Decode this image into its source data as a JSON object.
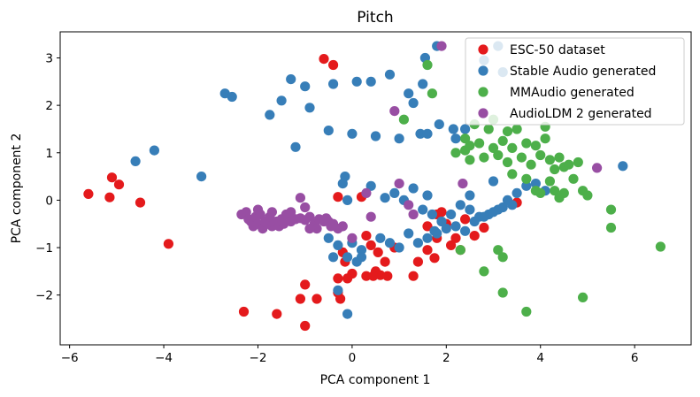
{
  "chart_data": {
    "type": "scatter",
    "title": "Pitch",
    "xlabel": "PCA component 1",
    "ylabel": "PCA component 2",
    "xlim": [
      -6.2,
      7.2
    ],
    "ylim": [
      -3.05,
      3.55
    ],
    "xticks": [
      -6,
      -4,
      -2,
      0,
      2,
      4,
      6
    ],
    "xtick_labels": [
      "−6",
      "−4",
      "−2",
      "0",
      "2",
      "4",
      "6"
    ],
    "yticks": [
      -2,
      -1,
      0,
      1,
      2,
      3
    ],
    "ytick_labels": [
      "−2",
      "−1",
      "0",
      "1",
      "2",
      "3"
    ],
    "grid": false,
    "legend_position": "top-right",
    "series": [
      {
        "name": "ESC-50 dataset",
        "color": "#e41a1c",
        "points": [
          [
            -5.6,
            0.13
          ],
          [
            -5.1,
            0.48
          ],
          [
            -4.95,
            0.33
          ],
          [
            -5.15,
            0.06
          ],
          [
            -4.5,
            -0.05
          ],
          [
            -3.9,
            -0.92
          ],
          [
            -2.3,
            -2.35
          ],
          [
            -1.6,
            -2.4
          ],
          [
            -1.0,
            -2.65
          ],
          [
            -1.1,
            -2.08
          ],
          [
            -0.75,
            -2.08
          ],
          [
            -1.0,
            -1.78
          ],
          [
            -0.3,
            -1.95
          ],
          [
            -0.25,
            -2.08
          ],
          [
            -0.3,
            -1.65
          ],
          [
            -0.6,
            2.98
          ],
          [
            -0.4,
            2.85
          ],
          [
            -0.3,
            0.07
          ],
          [
            0.2,
            0.07
          ],
          [
            0.3,
            -0.75
          ],
          [
            0.4,
            -0.95
          ],
          [
            0.55,
            -1.1
          ],
          [
            0.7,
            -1.3
          ],
          [
            0.5,
            -1.5
          ],
          [
            0.6,
            -1.58
          ],
          [
            0.3,
            -1.6
          ],
          [
            0.45,
            -1.6
          ],
          [
            0.75,
            -1.6
          ],
          [
            1.3,
            -1.6
          ],
          [
            1.4,
            -1.3
          ],
          [
            -0.2,
            -1.1
          ],
          [
            -0.15,
            -1.3
          ],
          [
            0.0,
            -1.55
          ],
          [
            -0.1,
            -1.65
          ],
          [
            1.6,
            -1.05
          ],
          [
            1.75,
            -1.22
          ],
          [
            1.8,
            -0.8
          ],
          [
            2.0,
            -0.5
          ],
          [
            2.2,
            -0.8
          ],
          [
            2.3,
            -1.05
          ],
          [
            2.4,
            -0.4
          ],
          [
            2.6,
            -0.75
          ],
          [
            2.8,
            -0.58
          ],
          [
            1.8,
            -0.3
          ],
          [
            1.9,
            -0.25
          ],
          [
            3.5,
            -0.05
          ],
          [
            1.6,
            -0.55
          ],
          [
            0.9,
            -1.0
          ],
          [
            2.1,
            -0.95
          ]
        ]
      },
      {
        "name": "Stable Audio generated",
        "color": "#377eb8",
        "points": [
          [
            -4.6,
            0.82
          ],
          [
            -4.2,
            1.05
          ],
          [
            -3.2,
            0.5
          ],
          [
            -2.7,
            2.25
          ],
          [
            -2.55,
            2.18
          ],
          [
            -1.75,
            1.8
          ],
          [
            -1.5,
            2.1
          ],
          [
            -1.3,
            2.55
          ],
          [
            -1.2,
            1.12
          ],
          [
            -1.0,
            2.4
          ],
          [
            -0.9,
            1.95
          ],
          [
            -0.5,
            1.47
          ],
          [
            -0.4,
            2.45
          ],
          [
            -0.15,
            0.5
          ],
          [
            -0.1,
            0.0
          ],
          [
            0.0,
            1.4
          ],
          [
            0.1,
            2.5
          ],
          [
            0.4,
            2.5
          ],
          [
            0.5,
            1.35
          ],
          [
            0.8,
            2.65
          ],
          [
            1.0,
            1.3
          ],
          [
            1.2,
            2.25
          ],
          [
            1.3,
            2.05
          ],
          [
            1.45,
            1.4
          ],
          [
            1.5,
            2.45
          ],
          [
            1.55,
            3.0
          ],
          [
            1.8,
            3.25
          ],
          [
            1.85,
            1.6
          ],
          [
            1.6,
            1.4
          ],
          [
            2.2,
            1.3
          ],
          [
            2.15,
            1.5
          ],
          [
            2.4,
            1.5
          ],
          [
            2.5,
            0.1
          ],
          [
            2.8,
            2.95
          ],
          [
            3.1,
            3.25
          ],
          [
            3.2,
            2.7
          ],
          [
            5.75,
            0.72
          ],
          [
            0.4,
            0.3
          ],
          [
            0.7,
            0.05
          ],
          [
            0.9,
            0.15
          ],
          [
            1.1,
            0.0
          ],
          [
            1.3,
            0.25
          ],
          [
            1.5,
            -0.2
          ],
          [
            1.7,
            -0.3
          ],
          [
            1.9,
            -0.45
          ],
          [
            2.1,
            -0.3
          ],
          [
            2.3,
            -0.1
          ],
          [
            2.5,
            -0.2
          ],
          [
            2.7,
            -0.35
          ],
          [
            2.9,
            -0.3
          ],
          [
            3.1,
            -0.2
          ],
          [
            3.3,
            0.0
          ],
          [
            3.5,
            0.15
          ],
          [
            3.7,
            0.3
          ],
          [
            3.9,
            0.35
          ],
          [
            4.1,
            0.2
          ],
          [
            0.6,
            -0.8
          ],
          [
            0.8,
            -0.9
          ],
          [
            1.0,
            -1.0
          ],
          [
            1.2,
            -0.7
          ],
          [
            1.4,
            -0.9
          ],
          [
            1.6,
            -0.8
          ],
          [
            1.8,
            -0.7
          ],
          [
            2.0,
            -0.6
          ],
          [
            2.2,
            -0.55
          ],
          [
            2.4,
            -0.65
          ],
          [
            2.6,
            -0.45
          ],
          [
            2.8,
            -0.35
          ],
          [
            3.0,
            -0.25
          ],
          [
            3.2,
            -0.15
          ],
          [
            0.0,
            -0.9
          ],
          [
            0.2,
            -1.05
          ],
          [
            -0.1,
            -1.2
          ],
          [
            0.1,
            -1.3
          ],
          [
            -0.3,
            -0.95
          ],
          [
            -0.5,
            -0.8
          ],
          [
            -0.4,
            -1.2
          ],
          [
            -0.3,
            -1.9
          ],
          [
            -0.1,
            -2.4
          ],
          [
            0.2,
            -1.2
          ],
          [
            -0.2,
            0.35
          ],
          [
            1.6,
            0.1
          ],
          [
            1.75,
            -0.65
          ],
          [
            3.0,
            0.4
          ],
          [
            3.4,
            -0.1
          ]
        ]
      },
      {
        "name": "MMAudio generated",
        "color": "#4daf4a",
        "points": [
          [
            1.6,
            2.85
          ],
          [
            1.7,
            2.25
          ],
          [
            1.1,
            1.7
          ],
          [
            2.4,
            1.3
          ],
          [
            2.4,
            1.05
          ],
          [
            2.2,
            1.0
          ],
          [
            2.5,
            0.85
          ],
          [
            2.7,
            1.2
          ],
          [
            2.8,
            0.9
          ],
          [
            2.9,
            1.5
          ],
          [
            3.0,
            1.1
          ],
          [
            3.1,
            0.95
          ],
          [
            3.2,
            1.25
          ],
          [
            3.3,
            0.8
          ],
          [
            3.4,
            1.1
          ],
          [
            3.5,
            1.5
          ],
          [
            3.6,
            0.9
          ],
          [
            3.7,
            1.2
          ],
          [
            3.8,
            0.75
          ],
          [
            3.9,
            1.15
          ],
          [
            4.0,
            0.95
          ],
          [
            4.1,
            1.3
          ],
          [
            4.2,
            0.85
          ],
          [
            4.3,
            0.65
          ],
          [
            4.4,
            0.9
          ],
          [
            4.5,
            0.7
          ],
          [
            4.6,
            0.75
          ],
          [
            4.7,
            0.45
          ],
          [
            4.8,
            0.8
          ],
          [
            4.2,
            0.4
          ],
          [
            4.3,
            0.2
          ],
          [
            4.5,
            0.15
          ],
          [
            4.9,
            0.2
          ],
          [
            5.0,
            0.1
          ],
          [
            5.5,
            -0.2
          ],
          [
            5.5,
            -0.58
          ],
          [
            6.55,
            -0.98
          ],
          [
            3.1,
            -1.05
          ],
          [
            3.2,
            -1.2
          ],
          [
            2.3,
            -1.05
          ],
          [
            2.8,
            -1.5
          ],
          [
            3.2,
            -1.95
          ],
          [
            3.7,
            -2.35
          ],
          [
            4.9,
            -2.05
          ],
          [
            3.9,
            0.2
          ],
          [
            3.7,
            0.45
          ],
          [
            4.1,
            1.55
          ],
          [
            3.0,
            1.7
          ],
          [
            2.6,
            1.6
          ],
          [
            3.3,
            1.45
          ],
          [
            4.4,
            0.05
          ],
          [
            4.0,
            0.15
          ],
          [
            2.5,
            1.15
          ],
          [
            3.4,
            0.55
          ]
        ]
      },
      {
        "name": "AudioLDM 2 generated",
        "color": "#984ea3",
        "points": [
          [
            -2.35,
            -0.3
          ],
          [
            -2.25,
            -0.25
          ],
          [
            -2.2,
            -0.4
          ],
          [
            -2.15,
            -0.45
          ],
          [
            -2.1,
            -0.55
          ],
          [
            -2.05,
            -0.35
          ],
          [
            -2.0,
            -0.5
          ],
          [
            -1.95,
            -0.3
          ],
          [
            -1.9,
            -0.6
          ],
          [
            -1.85,
            -0.45
          ],
          [
            -1.8,
            -0.5
          ],
          [
            -1.75,
            -0.35
          ],
          [
            -1.7,
            -0.55
          ],
          [
            -1.65,
            -0.5
          ],
          [
            -1.6,
            -0.45
          ],
          [
            -1.55,
            -0.55
          ],
          [
            -1.5,
            -0.4
          ],
          [
            -1.45,
            -0.5
          ],
          [
            -1.4,
            -0.3
          ],
          [
            -1.3,
            -0.45
          ],
          [
            -1.2,
            -0.4
          ],
          [
            -1.1,
            -0.38
          ],
          [
            -1.0,
            -0.42
          ],
          [
            -0.9,
            -0.35
          ],
          [
            -0.8,
            -0.5
          ],
          [
            -0.75,
            -0.6
          ],
          [
            -0.7,
            -0.4
          ],
          [
            -0.6,
            -0.45
          ],
          [
            -0.55,
            -0.38
          ],
          [
            -0.5,
            -0.45
          ],
          [
            -0.45,
            -0.55
          ],
          [
            -0.4,
            -0.5
          ],
          [
            -0.3,
            -0.6
          ],
          [
            -0.2,
            -0.55
          ],
          [
            -1.0,
            -0.15
          ],
          [
            -1.1,
            0.05
          ],
          [
            -1.7,
            -0.25
          ],
          [
            -2.0,
            -0.2
          ],
          [
            0.3,
            0.15
          ],
          [
            0.4,
            -0.35
          ],
          [
            0.0,
            -0.8
          ],
          [
            0.9,
            1.88
          ],
          [
            1.0,
            0.35
          ],
          [
            1.3,
            -0.3
          ],
          [
            1.9,
            3.25
          ],
          [
            2.35,
            0.35
          ],
          [
            5.2,
            0.68
          ],
          [
            1.2,
            -0.1
          ],
          [
            -1.3,
            -0.25
          ],
          [
            -0.9,
            -0.6
          ]
        ]
      }
    ]
  }
}
